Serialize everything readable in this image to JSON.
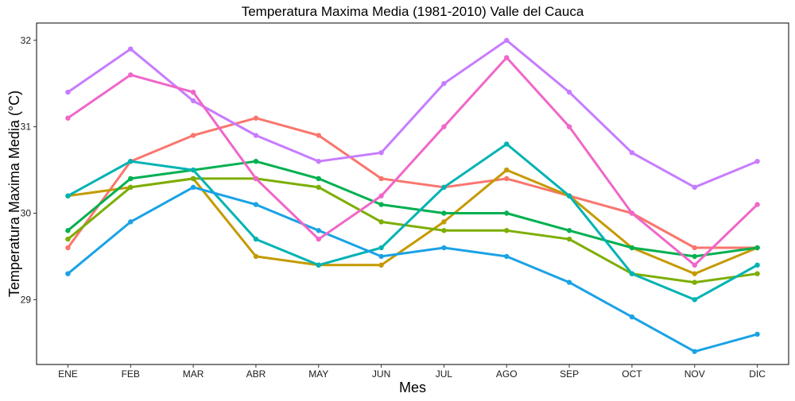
{
  "chart_data": {
    "type": "line",
    "title": "Temperatura Maxima Media (1981-2010)  Valle del Cauca",
    "xlabel": "Mes",
    "ylabel": "Temperatura Maxima Media  (°C)",
    "categories": [
      "ENE",
      "FEB",
      "MAR",
      "ABR",
      "MAY",
      "JUN",
      "JUL",
      "AGO",
      "SEP",
      "OCT",
      "NOV",
      "DIC"
    ],
    "ylim": [
      28.25,
      32.2
    ],
    "yticks": [
      29,
      30,
      31,
      32
    ],
    "grid": false,
    "legend": "none",
    "series": [
      {
        "color": "#F8766D",
        "values": [
          29.6,
          30.6,
          30.9,
          31.1,
          30.9,
          30.4,
          30.3,
          30.4,
          30.2,
          30.0,
          29.6,
          29.6
        ]
      },
      {
        "color": "#C49A00",
        "values": [
          30.2,
          30.3,
          30.4,
          29.5,
          29.4,
          29.4,
          29.9,
          30.5,
          30.2,
          29.6,
          29.3,
          29.6
        ]
      },
      {
        "color": "#7CAE00",
        "values": [
          29.7,
          30.3,
          30.4,
          30.4,
          30.3,
          29.9,
          29.8,
          29.8,
          29.7,
          29.3,
          29.2,
          29.3
        ]
      },
      {
        "color": "#00B050",
        "values": [
          29.8,
          30.4,
          30.5,
          30.6,
          30.4,
          30.1,
          30.0,
          30.0,
          29.8,
          29.6,
          29.5,
          29.6
        ]
      },
      {
        "color": "#00B3B3",
        "values": [
          30.2,
          30.6,
          30.5,
          29.7,
          29.4,
          29.6,
          30.3,
          30.8,
          30.2,
          29.3,
          29.0,
          29.4
        ]
      },
      {
        "color": "#1AA2E6",
        "values": [
          29.3,
          29.9,
          30.3,
          30.1,
          29.8,
          29.5,
          29.6,
          29.5,
          29.2,
          28.8,
          28.4,
          28.6
        ]
      },
      {
        "color": "#C77CFF",
        "values": [
          31.4,
          31.9,
          31.3,
          30.9,
          30.6,
          30.7,
          31.5,
          32.0,
          31.4,
          30.7,
          30.3,
          30.6
        ]
      },
      {
        "color": "#F066C9",
        "values": [
          31.1,
          31.6,
          31.4,
          30.4,
          29.7,
          30.2,
          31.0,
          31.8,
          31.0,
          30.0,
          29.4,
          30.1
        ]
      }
    ]
  }
}
